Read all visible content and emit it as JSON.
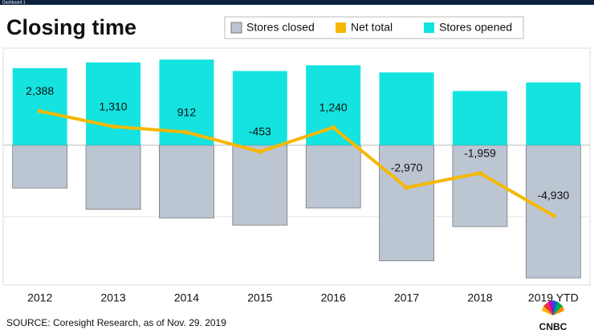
{
  "header": {
    "tab": "Dashboard 1"
  },
  "chart_data": {
    "type": "bar_line",
    "title": "Closing time",
    "categories": [
      "2012",
      "2013",
      "2014",
      "2015",
      "2016",
      "2017",
      "2018",
      "2019 YTD"
    ],
    "series": [
      {
        "name": "Stores closed",
        "color": "#bcc5d2",
        "kind": "bar",
        "values": [
          -3000,
          -4500,
          -5100,
          -5600,
          -4400,
          -8100,
          -5700,
          -9300
        ]
      },
      {
        "name": "Net total",
        "color": "#f5b800",
        "kind": "line",
        "values": [
          2388,
          1310,
          912,
          -453,
          1240,
          -2970,
          -1959,
          -4930
        ],
        "value_labels": [
          "2,388",
          "1,310",
          "912",
          "-453",
          "1,240",
          "-2,970",
          "-1,959",
          "-4,930"
        ]
      },
      {
        "name": "Stores opened",
        "color": "#14e3df",
        "kind": "bar",
        "values": [
          5400,
          5800,
          6000,
          5200,
          5600,
          5100,
          3800,
          4400
        ]
      }
    ],
    "ylim": [
      -9800,
      6800
    ],
    "yticks": [
      -5000,
      0
    ],
    "grid": true,
    "source": "SOURCE: Coresight Research, as of Nov. 29. 2019"
  },
  "logo": {
    "text": "CNBC"
  }
}
